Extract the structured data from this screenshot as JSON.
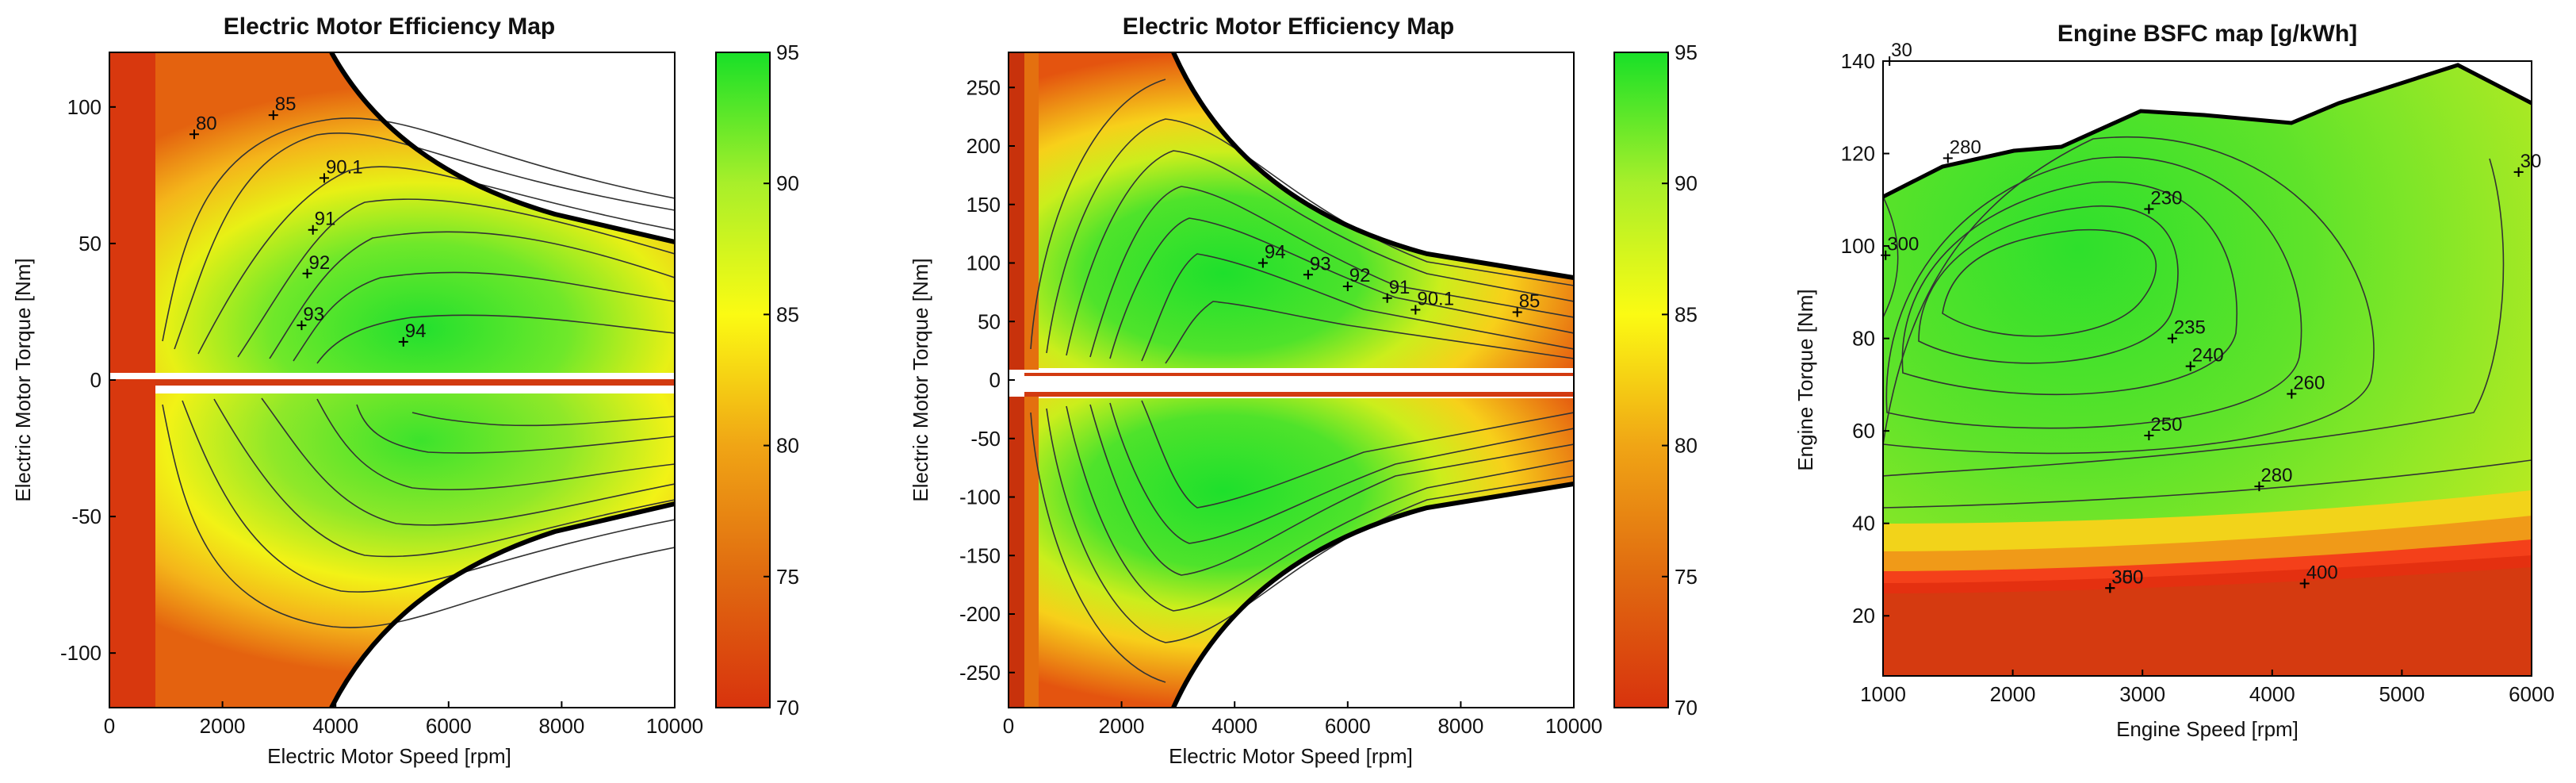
{
  "chart_data": [
    {
      "type": "heatmap",
      "title": "Electric Motor Efficiency Map",
      "xlabel": "Electric Motor Speed [rpm]",
      "ylabel": "Electric Motor Torque [Nm]",
      "xlim": [
        0,
        10000
      ],
      "ylim": [
        -120,
        120
      ],
      "x_ticks": [
        0,
        2000,
        4000,
        6000,
        8000,
        10000
      ],
      "y_ticks": [
        -100,
        -50,
        0,
        50,
        100
      ],
      "colorbar": {
        "min": 70,
        "max": 95,
        "ticks": [
          70,
          75,
          80,
          85,
          90,
          95
        ]
      },
      "contour_labels": [
        {
          "label": "80",
          "x": 1500,
          "y": 90
        },
        {
          "label": "85",
          "x": 2900,
          "y": 97
        },
        {
          "label": "90.1",
          "x": 3800,
          "y": 74
        },
        {
          "label": "91",
          "x": 3600,
          "y": 55
        },
        {
          "label": "92",
          "x": 3500,
          "y": 39
        },
        {
          "label": "93",
          "x": 3400,
          "y": 20
        },
        {
          "label": "94",
          "x": 5200,
          "y": 14
        }
      ]
    },
    {
      "type": "heatmap",
      "title": "Electric Motor Efficiency Map",
      "xlabel": "Electric Motor Speed [rpm]",
      "ylabel": "Electric Motor Torque [Nm]",
      "xlim": [
        0,
        10000
      ],
      "ylim": [
        -280,
        280
      ],
      "x_ticks": [
        0,
        2000,
        4000,
        6000,
        8000,
        10000
      ],
      "y_ticks": [
        -250,
        -200,
        -150,
        -100,
        -50,
        0,
        50,
        100,
        150,
        200,
        250
      ],
      "colorbar": {
        "min": 70,
        "max": 95,
        "ticks": [
          70,
          75,
          80,
          85,
          90,
          95
        ]
      },
      "contour_labels": [
        {
          "label": "94",
          "x": 4500,
          "y": 100
        },
        {
          "label": "93",
          "x": 5300,
          "y": 90
        },
        {
          "label": "92",
          "x": 6000,
          "y": 80
        },
        {
          "label": "91",
          "x": 6700,
          "y": 70
        },
        {
          "label": "90.1",
          "x": 7200,
          "y": 60
        },
        {
          "label": "85",
          "x": 9000,
          "y": 58
        }
      ]
    },
    {
      "type": "heatmap",
      "title": "Engine BSFC map [g/kWh]",
      "xlabel": "Engine Speed [rpm]",
      "ylabel": "Engine Torque [Nm]",
      "xlim": [
        1000,
        6000
      ],
      "ylim": [
        7,
        140
      ],
      "x_ticks": [
        1000,
        2000,
        3000,
        4000,
        5000,
        6000
      ],
      "y_ticks": [
        20,
        40,
        60,
        80,
        100,
        120,
        140
      ],
      "contour_labels": [
        {
          "label": "280",
          "x": 1500,
          "y": 119
        },
        {
          "label": "300",
          "x": 1020,
          "y": 98
        },
        {
          "label": "230",
          "x": 3050,
          "y": 108
        },
        {
          "label": "235",
          "x": 3230,
          "y": 80
        },
        {
          "label": "240",
          "x": 3370,
          "y": 74
        },
        {
          "label": "260",
          "x": 4150,
          "y": 68
        },
        {
          "label": "250",
          "x": 3050,
          "y": 59
        },
        {
          "label": "280",
          "x": 3900,
          "y": 48
        },
        {
          "label": "300",
          "x": 2750,
          "y": 26
        },
        {
          "label": "350",
          "x": 2750,
          "y": 26
        },
        {
          "label": "400",
          "x": 4250,
          "y": 27
        },
        {
          "label": "30",
          "x": 5900,
          "y": 116
        },
        {
          "label": "30",
          "x": 1050,
          "y": 140
        }
      ]
    }
  ]
}
